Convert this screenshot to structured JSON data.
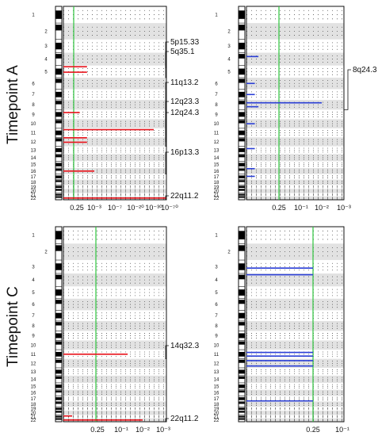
{
  "figure": {
    "row_labels": [
      "Timepoint A",
      "Timepoint C"
    ]
  },
  "colors": {
    "red": "#e8141c",
    "light_red": "#f08a8a",
    "blue": "#2b3fd6",
    "light_blue": "#6f7fe8",
    "green": "#2ec43e",
    "band": "#e2e2e2"
  },
  "chart_data": [
    {
      "type": "bar",
      "panel": "A-left",
      "chromosomes": [
        "1",
        "2",
        "3",
        "4",
        "5",
        "6",
        "7",
        "8",
        "9",
        "10",
        "11",
        "12",
        "13",
        "14",
        "15",
        "16",
        "17",
        "18",
        "19",
        "20",
        "21",
        "22"
      ],
      "x_scale": "log (p-value, reversed)",
      "x_ticks": [
        "0.25",
        "10⁻³",
        "10⁻⁷",
        "10⁻²⁰",
        "10⁻³⁰",
        "10⁻⁷⁰"
      ],
      "threshold": "0.25",
      "color": "red",
      "bars": [
        {
          "chromosome": "5",
          "position": 0.1,
          "value": "10⁻²"
        },
        {
          "chromosome": "5",
          "position": 0.55,
          "value": "10⁻²"
        },
        {
          "chromosome": "9",
          "position": 0.3,
          "value": "0.1"
        },
        {
          "chromosome": "11",
          "position": 0.15,
          "value": "10⁻³⁰"
        },
        {
          "chromosome": "12",
          "position": 0.05,
          "value": "10⁻²"
        },
        {
          "chromosome": "12",
          "position": 0.55,
          "value": "10⁻²"
        },
        {
          "chromosome": "16",
          "position": 0.5,
          "value": "10⁻³"
        },
        {
          "chromosome": "22",
          "position": 0.5,
          "value": "10⁻⁷⁰"
        }
      ],
      "annotations": [
        "5p15.33",
        "5q35.1",
        "11q13.2",
        "12q23.3",
        "12q24.3",
        "16p13.3",
        "22q11.2"
      ]
    },
    {
      "type": "bar",
      "panel": "A-right",
      "chromosomes": [
        "1",
        "2",
        "3",
        "4",
        "5",
        "6",
        "7",
        "8",
        "9",
        "10",
        "11",
        "12",
        "13",
        "14",
        "15",
        "16",
        "17",
        "18",
        "19",
        "20",
        "21",
        "22"
      ],
      "x_scale": "log (p-value, reversed)",
      "x_ticks": [
        "0.25",
        "10⁻¹",
        "10⁻²",
        "10⁻³"
      ],
      "threshold": "0.25",
      "color": "blue",
      "bars": [
        {
          "chromosome": "4",
          "position": 0.3,
          "value": "0.6"
        },
        {
          "chromosome": "6",
          "position": 0.5,
          "value": "0.7"
        },
        {
          "chromosome": "7",
          "position": 0.5,
          "value": "0.7"
        },
        {
          "chromosome": "8",
          "position": 0.3,
          "value": "10⁻²"
        },
        {
          "chromosome": "8",
          "position": 0.7,
          "value": "0.6"
        },
        {
          "chromosome": "10",
          "position": 0.5,
          "value": "0.7"
        },
        {
          "chromosome": "13",
          "position": 0.3,
          "value": "0.7"
        },
        {
          "chromosome": "16",
          "position": 0.1,
          "value": "0.7"
        },
        {
          "chromosome": "17",
          "position": 0.4,
          "value": "0.7"
        }
      ],
      "annotations": [
        "8q24.3"
      ]
    },
    {
      "type": "bar",
      "panel": "C-left",
      "chromosomes": [
        "1",
        "2",
        "3",
        "4",
        "5",
        "6",
        "7",
        "8",
        "9",
        "10",
        "11",
        "12",
        "13",
        "14",
        "15",
        "16",
        "17",
        "18",
        "19",
        "20",
        "21",
        "22"
      ],
      "x_scale": "log (p-value, reversed)",
      "x_ticks": [
        "0.25",
        "10⁻¹",
        "10⁻²",
        "10⁻³"
      ],
      "threshold": "0.25",
      "color": "red",
      "bars": [
        {
          "chromosome": "11",
          "position": 0.5,
          "value": "0.05"
        },
        {
          "chromosome": "21",
          "position": 0.3,
          "value": "0.7"
        },
        {
          "chromosome": "22",
          "position": 0.5,
          "value": "10⁻²"
        }
      ],
      "annotations": [
        "14q32.3",
        "22q11.2"
      ]
    },
    {
      "type": "bar",
      "panel": "C-right",
      "chromosomes": [
        "1",
        "2",
        "3",
        "4",
        "5",
        "6",
        "7",
        "8",
        "9",
        "10",
        "11",
        "12",
        "13",
        "14",
        "15",
        "16",
        "17",
        "18",
        "19",
        "20",
        "21",
        "22"
      ],
      "x_scale": "log (p-value, reversed)",
      "x_ticks": [
        "0.25",
        "10⁻¹"
      ],
      "threshold": "0.25",
      "color": "blue",
      "bars": [
        {
          "chromosome": "3",
          "position": 0.6,
          "value": "0.25"
        },
        {
          "chromosome": "4",
          "position": 0.1,
          "value": "0.25"
        },
        {
          "chromosome": "11",
          "position": 0.3,
          "value": "0.25"
        },
        {
          "chromosome": "11",
          "position": 0.7,
          "value": "0.25"
        },
        {
          "chromosome": "12",
          "position": 0.2,
          "value": "0.25"
        },
        {
          "chromosome": "12",
          "position": 0.8,
          "value": "0.25"
        },
        {
          "chromosome": "17",
          "position": 0.9,
          "value": "0.25"
        }
      ],
      "annotations": []
    }
  ]
}
